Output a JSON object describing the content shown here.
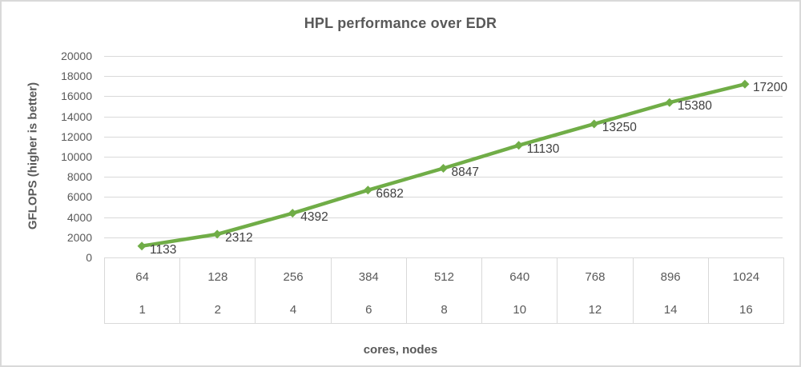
{
  "chart_data": {
    "type": "line",
    "title": "HPL performance over EDR",
    "ylabel": "GFLOPS (higher is better)",
    "xlabel": "cores, nodes",
    "x_axis_levels": [
      {
        "name": "cores",
        "labels": [
          "64",
          "128",
          "256",
          "384",
          "512",
          "640",
          "768",
          "896",
          "1024"
        ]
      },
      {
        "name": "nodes",
        "labels": [
          "1",
          "2",
          "4",
          "6",
          "8",
          "10",
          "12",
          "14",
          "16"
        ]
      }
    ],
    "series": [
      {
        "values": [
          1133,
          2312,
          4392,
          6682,
          8847,
          11130,
          13250,
          15380,
          17200
        ],
        "color": "#70AD47",
        "marker": "diamond",
        "data_labels": true
      }
    ],
    "ylim": [
      0,
      20000
    ],
    "y_tick_step": 2000,
    "grid": "horizontal",
    "legend": "none"
  },
  "colors": {
    "grid": "#d9d9d9",
    "table_border": "#d9d9d9",
    "axis_text": "#595959",
    "data_label": "#404040",
    "title_text": "#595959",
    "chart_border": "#d9d9d9",
    "background": "#ffffff"
  }
}
